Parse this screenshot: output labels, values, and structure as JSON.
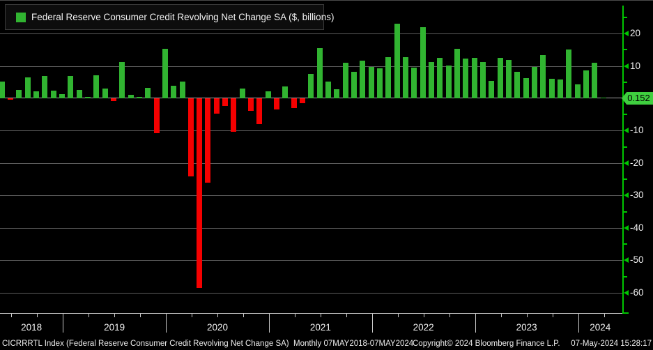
{
  "legend": {
    "label": "Federal Reserve Consumer Credit Revolving Net Change SA ($, billions)",
    "swatch_color": "#31b431"
  },
  "y_axis": {
    "current_value": "0.152",
    "labeled_ticks": [
      20,
      10,
      -10,
      -20,
      -30,
      -40,
      -50,
      -60
    ],
    "minor_ticks": [
      25,
      15,
      5,
      -5,
      -15,
      -25,
      -35,
      -45,
      -55
    ],
    "axis_color": "#00c600",
    "badge_color": "#3fcf3f"
  },
  "x_axis": {
    "year_labels": [
      "2018",
      "2019",
      "2020",
      "2021",
      "2022",
      "2023",
      "2024"
    ]
  },
  "status_bar": {
    "left": "CICRRRTL Index (Federal Reserve Consumer Credit Revolving Net Change SA)  Monthly 07MAY2018-07MAY2024",
    "copyright": "Copyright© 2024 Bloomberg Finance L.P.",
    "datetime": "07-May-2024 15:28:17"
  },
  "chart_data": {
    "type": "bar",
    "title": "Federal Reserve Consumer Credit Revolving Net Change SA ($, billions)",
    "frequency": "Monthly",
    "period": "07MAY2018-07MAY2024",
    "ylim": [
      -65,
      27
    ],
    "grid": "horizontal",
    "legend_position": "top-left",
    "positive_color": "#31b431",
    "negative_color": "#f50000",
    "last_value": 0.152,
    "x": [
      "2018-05",
      "2018-06",
      "2018-07",
      "2018-08",
      "2018-09",
      "2018-10",
      "2018-11",
      "2018-12",
      "2019-01",
      "2019-02",
      "2019-03",
      "2019-04",
      "2019-05",
      "2019-06",
      "2019-07",
      "2019-08",
      "2019-09",
      "2019-10",
      "2019-11",
      "2019-12",
      "2020-01",
      "2020-02",
      "2020-03",
      "2020-04",
      "2020-05",
      "2020-06",
      "2020-07",
      "2020-08",
      "2020-09",
      "2020-10",
      "2020-11",
      "2020-12",
      "2021-01",
      "2021-02",
      "2021-03",
      "2021-04",
      "2021-05",
      "2021-06",
      "2021-07",
      "2021-08",
      "2021-09",
      "2021-10",
      "2021-11",
      "2021-12",
      "2022-01",
      "2022-02",
      "2022-03",
      "2022-04",
      "2022-05",
      "2022-06",
      "2022-07",
      "2022-08",
      "2022-09",
      "2022-10",
      "2022-11",
      "2022-12",
      "2023-01",
      "2023-02",
      "2023-03",
      "2023-04",
      "2023-05",
      "2023-06",
      "2023-07",
      "2023-08",
      "2023-09",
      "2023-10",
      "2023-11",
      "2023-12",
      "2024-01",
      "2024-02",
      "2024-03"
    ],
    "values": [
      5.2,
      -0.5,
      2.7,
      6.5,
      2.2,
      6.8,
      2.4,
      1.2,
      6.9,
      2.7,
      0.4,
      7.2,
      3.1,
      -0.9,
      11.3,
      1.1,
      0.4,
      3.3,
      -10.8,
      15.3,
      3.8,
      5.2,
      -24.0,
      -58.5,
      -26.0,
      -4.8,
      -2.3,
      -10.4,
      3.1,
      -3.9,
      -8.0,
      2.2,
      -3.4,
      3.7,
      -3.0,
      -1.4,
      7.6,
      15.5,
      5.2,
      2.9,
      11.0,
      8.1,
      11.7,
      9.7,
      9.2,
      12.7,
      23.0,
      12.7,
      9.5,
      22.0,
      11.3,
      12.6,
      10.1,
      15.3,
      12.3,
      12.6,
      11.2,
      5.4,
      12.4,
      11.8,
      8.1,
      6.3,
      9.7,
      13.3,
      6.0,
      5.8,
      15.0,
      4.3,
      8.6,
      11.0,
      0.152
    ]
  }
}
